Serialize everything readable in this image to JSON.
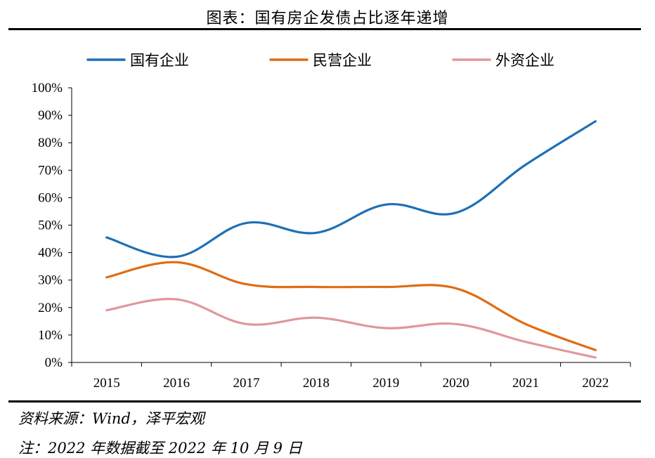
{
  "header": {
    "title": "图表：国有房企发债占比逐年递增"
  },
  "footer": {
    "source": "资料来源：Wind，泽平宏观",
    "note": "注：2022 年数据截至 2022 年 10 月 9 日"
  },
  "chart_data": {
    "type": "line",
    "title": "图表：国有房企发债占比逐年递增",
    "xlabel": "",
    "ylabel": "",
    "categories": [
      "2015",
      "2016",
      "2017",
      "2018",
      "2019",
      "2020",
      "2021",
      "2022"
    ],
    "ylim": [
      0,
      100
    ],
    "yticks": [
      "0%",
      "10%",
      "20%",
      "30%",
      "40%",
      "50%",
      "60%",
      "70%",
      "80%",
      "90%",
      "100%"
    ],
    "grid": false,
    "legend_position": "top",
    "series": [
      {
        "name": "国有企业",
        "color": "#1f6fb5",
        "values": [
          45.5,
          38.5,
          50.8,
          47.2,
          57.5,
          54.5,
          72.0,
          87.8
        ]
      },
      {
        "name": "民营企业",
        "color": "#e06c12",
        "values": [
          31.0,
          36.5,
          28.5,
          27.5,
          27.5,
          27.0,
          14.0,
          4.5
        ]
      },
      {
        "name": "外资企业",
        "color": "#e0979a",
        "values": [
          19.0,
          23.0,
          14.0,
          16.3,
          12.5,
          14.0,
          7.5,
          1.8
        ]
      }
    ]
  }
}
